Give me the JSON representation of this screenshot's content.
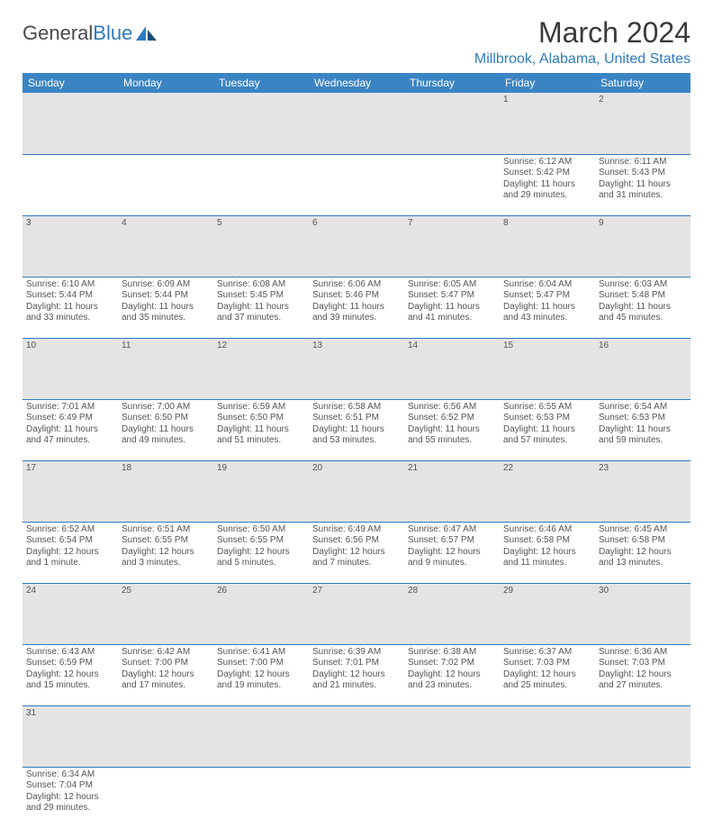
{
  "logo": {
    "textA": "General",
    "textB": "Blue"
  },
  "title": "March 2024",
  "location": "Millbrook, Alabama, United States",
  "colors": {
    "header_bg": "#3b84c4",
    "header_fg": "#ffffff",
    "accent": "#2e7bbf",
    "daynum_bg": "#e4e4e4",
    "text": "#555555"
  },
  "day_headers": [
    "Sunday",
    "Monday",
    "Tuesday",
    "Wednesday",
    "Thursday",
    "Friday",
    "Saturday"
  ],
  "weeks": [
    [
      null,
      null,
      null,
      null,
      null,
      {
        "n": "1",
        "sr": "Sunrise: 6:12 AM",
        "ss": "Sunset: 5:42 PM",
        "d1": "Daylight: 11 hours",
        "d2": "and 29 minutes."
      },
      {
        "n": "2",
        "sr": "Sunrise: 6:11 AM",
        "ss": "Sunset: 5:43 PM",
        "d1": "Daylight: 11 hours",
        "d2": "and 31 minutes."
      }
    ],
    [
      {
        "n": "3",
        "sr": "Sunrise: 6:10 AM",
        "ss": "Sunset: 5:44 PM",
        "d1": "Daylight: 11 hours",
        "d2": "and 33 minutes."
      },
      {
        "n": "4",
        "sr": "Sunrise: 6:09 AM",
        "ss": "Sunset: 5:44 PM",
        "d1": "Daylight: 11 hours",
        "d2": "and 35 minutes."
      },
      {
        "n": "5",
        "sr": "Sunrise: 6:08 AM",
        "ss": "Sunset: 5:45 PM",
        "d1": "Daylight: 11 hours",
        "d2": "and 37 minutes."
      },
      {
        "n": "6",
        "sr": "Sunrise: 6:06 AM",
        "ss": "Sunset: 5:46 PM",
        "d1": "Daylight: 11 hours",
        "d2": "and 39 minutes."
      },
      {
        "n": "7",
        "sr": "Sunrise: 6:05 AM",
        "ss": "Sunset: 5:47 PM",
        "d1": "Daylight: 11 hours",
        "d2": "and 41 minutes."
      },
      {
        "n": "8",
        "sr": "Sunrise: 6:04 AM",
        "ss": "Sunset: 5:47 PM",
        "d1": "Daylight: 11 hours",
        "d2": "and 43 minutes."
      },
      {
        "n": "9",
        "sr": "Sunrise: 6:03 AM",
        "ss": "Sunset: 5:48 PM",
        "d1": "Daylight: 11 hours",
        "d2": "and 45 minutes."
      }
    ],
    [
      {
        "n": "10",
        "sr": "Sunrise: 7:01 AM",
        "ss": "Sunset: 6:49 PM",
        "d1": "Daylight: 11 hours",
        "d2": "and 47 minutes."
      },
      {
        "n": "11",
        "sr": "Sunrise: 7:00 AM",
        "ss": "Sunset: 6:50 PM",
        "d1": "Daylight: 11 hours",
        "d2": "and 49 minutes."
      },
      {
        "n": "12",
        "sr": "Sunrise: 6:59 AM",
        "ss": "Sunset: 6:50 PM",
        "d1": "Daylight: 11 hours",
        "d2": "and 51 minutes."
      },
      {
        "n": "13",
        "sr": "Sunrise: 6:58 AM",
        "ss": "Sunset: 6:51 PM",
        "d1": "Daylight: 11 hours",
        "d2": "and 53 minutes."
      },
      {
        "n": "14",
        "sr": "Sunrise: 6:56 AM",
        "ss": "Sunset: 6:52 PM",
        "d1": "Daylight: 11 hours",
        "d2": "and 55 minutes."
      },
      {
        "n": "15",
        "sr": "Sunrise: 6:55 AM",
        "ss": "Sunset: 6:53 PM",
        "d1": "Daylight: 11 hours",
        "d2": "and 57 minutes."
      },
      {
        "n": "16",
        "sr": "Sunrise: 6:54 AM",
        "ss": "Sunset: 6:53 PM",
        "d1": "Daylight: 11 hours",
        "d2": "and 59 minutes."
      }
    ],
    [
      {
        "n": "17",
        "sr": "Sunrise: 6:52 AM",
        "ss": "Sunset: 6:54 PM",
        "d1": "Daylight: 12 hours",
        "d2": "and 1 minute."
      },
      {
        "n": "18",
        "sr": "Sunrise: 6:51 AM",
        "ss": "Sunset: 6:55 PM",
        "d1": "Daylight: 12 hours",
        "d2": "and 3 minutes."
      },
      {
        "n": "19",
        "sr": "Sunrise: 6:50 AM",
        "ss": "Sunset: 6:55 PM",
        "d1": "Daylight: 12 hours",
        "d2": "and 5 minutes."
      },
      {
        "n": "20",
        "sr": "Sunrise: 6:49 AM",
        "ss": "Sunset: 6:56 PM",
        "d1": "Daylight: 12 hours",
        "d2": "and 7 minutes."
      },
      {
        "n": "21",
        "sr": "Sunrise: 6:47 AM",
        "ss": "Sunset: 6:57 PM",
        "d1": "Daylight: 12 hours",
        "d2": "and 9 minutes."
      },
      {
        "n": "22",
        "sr": "Sunrise: 6:46 AM",
        "ss": "Sunset: 6:58 PM",
        "d1": "Daylight: 12 hours",
        "d2": "and 11 minutes."
      },
      {
        "n": "23",
        "sr": "Sunrise: 6:45 AM",
        "ss": "Sunset: 6:58 PM",
        "d1": "Daylight: 12 hours",
        "d2": "and 13 minutes."
      }
    ],
    [
      {
        "n": "24",
        "sr": "Sunrise: 6:43 AM",
        "ss": "Sunset: 6:59 PM",
        "d1": "Daylight: 12 hours",
        "d2": "and 15 minutes."
      },
      {
        "n": "25",
        "sr": "Sunrise: 6:42 AM",
        "ss": "Sunset: 7:00 PM",
        "d1": "Daylight: 12 hours",
        "d2": "and 17 minutes."
      },
      {
        "n": "26",
        "sr": "Sunrise: 6:41 AM",
        "ss": "Sunset: 7:00 PM",
        "d1": "Daylight: 12 hours",
        "d2": "and 19 minutes."
      },
      {
        "n": "27",
        "sr": "Sunrise: 6:39 AM",
        "ss": "Sunset: 7:01 PM",
        "d1": "Daylight: 12 hours",
        "d2": "and 21 minutes."
      },
      {
        "n": "28",
        "sr": "Sunrise: 6:38 AM",
        "ss": "Sunset: 7:02 PM",
        "d1": "Daylight: 12 hours",
        "d2": "and 23 minutes."
      },
      {
        "n": "29",
        "sr": "Sunrise: 6:37 AM",
        "ss": "Sunset: 7:03 PM",
        "d1": "Daylight: 12 hours",
        "d2": "and 25 minutes."
      },
      {
        "n": "30",
        "sr": "Sunrise: 6:36 AM",
        "ss": "Sunset: 7:03 PM",
        "d1": "Daylight: 12 hours",
        "d2": "and 27 minutes."
      }
    ],
    [
      {
        "n": "31",
        "sr": "Sunrise: 6:34 AM",
        "ss": "Sunset: 7:04 PM",
        "d1": "Daylight: 12 hours",
        "d2": "and 29 minutes."
      },
      null,
      null,
      null,
      null,
      null,
      null
    ]
  ]
}
